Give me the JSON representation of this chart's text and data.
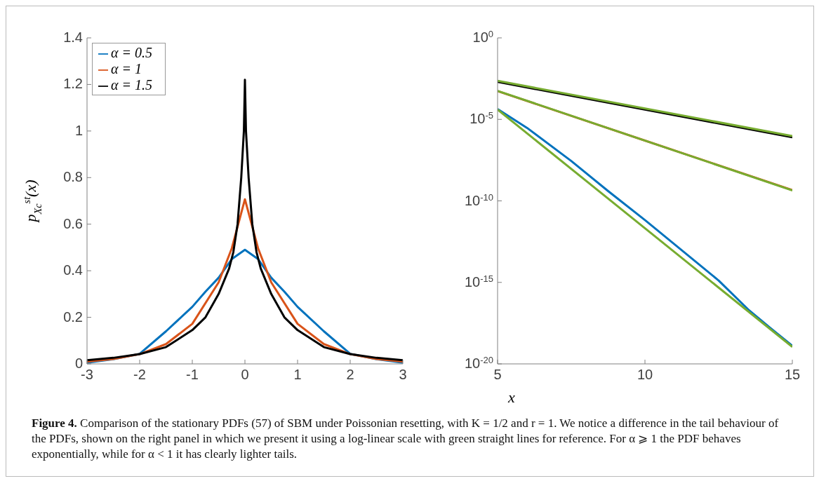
{
  "chart_data": [
    {
      "type": "line",
      "ylabel": "p$_{X}$$_{c}$$^{st}$(x)",
      "xlim": [
        -3,
        3
      ],
      "xticks": [
        -3,
        -2,
        -1,
        0,
        1,
        2,
        3
      ],
      "ylim": [
        0,
        1.4
      ],
      "yticks": [
        0,
        0.2,
        0.4,
        0.6,
        0.8,
        1,
        1.2,
        1.4
      ],
      "legend": "top left",
      "marker": "none",
      "line_style": "solid",
      "series": [
        {
          "name": "α = 0.5",
          "color": "#0072bd",
          "x": [
            -3,
            -2.5,
            -2,
            -1.5,
            -1,
            -0.75,
            -0.5,
            -0.25,
            0,
            0.25,
            0.5,
            0.75,
            1,
            1.5,
            2,
            2.5,
            3
          ],
          "values": [
            0.005,
            0.02,
            0.043,
            0.14,
            0.245,
            0.31,
            0.37,
            0.45,
            0.49,
            0.45,
            0.37,
            0.31,
            0.245,
            0.14,
            0.043,
            0.02,
            0.005
          ]
        },
        {
          "name": "α = 1",
          "color": "#d95319",
          "x": [
            -3,
            -2.5,
            -2,
            -1.5,
            -1,
            -0.5,
            -0.25,
            0,
            0.25,
            0.5,
            1,
            1.5,
            2,
            2.5,
            3
          ],
          "values": [
            0.01,
            0.021,
            0.042,
            0.085,
            0.172,
            0.35,
            0.496,
            0.707,
            0.496,
            0.35,
            0.172,
            0.085,
            0.042,
            0.021,
            0.01
          ]
        },
        {
          "name": "α = 1.5",
          "color": "#000000",
          "x": [
            -3,
            -2.5,
            -2,
            -1.5,
            -1,
            -0.75,
            -0.5,
            -0.3,
            -0.22,
            -0.14,
            -0.07,
            -0.02,
            0,
            0.02,
            0.07,
            0.14,
            0.22,
            0.3,
            0.5,
            0.75,
            1,
            1.5,
            2,
            2.5,
            3
          ],
          "values": [
            0.016,
            0.026,
            0.042,
            0.072,
            0.145,
            0.2,
            0.3,
            0.41,
            0.48,
            0.6,
            0.8,
            1.0,
            1.22,
            1.0,
            0.8,
            0.6,
            0.48,
            0.41,
            0.3,
            0.2,
            0.145,
            0.072,
            0.042,
            0.026,
            0.016
          ]
        }
      ],
      "annotations": [
        "Figure 4.",
        "Comparison of the stationary PDFs (57) of SBM under Poissonian resetting, with K = 1/2 and r = 1. We notice a difference in the tail behaviour of the PDFs, shown on the right panel in which we present it using a log-linear scale with green straight lines for reference. For α ⩾ 1 the PDF behaves exponentially, while for α < 1 it has clearly lighter tails."
      ]
    },
    {
      "type": "line",
      "xlabel": "x",
      "log": "y",
      "xlim": [
        5,
        15
      ],
      "xticks": [
        5,
        10,
        15
      ],
      "ylim": [
        1e-20,
        1
      ],
      "yticks": [
        {
          "value": 1e-20,
          "label": "10$^{-20}$"
        },
        {
          "value": 1e-15,
          "label": "10$^{-15}$"
        },
        {
          "value": 1e-10,
          "label": "10$^{-10}$"
        },
        {
          "value": 1e-05,
          "label": "10$^{-5}$"
        },
        {
          "value": 1,
          "label": "10$^{0}$"
        }
      ],
      "marker": "none",
      "line_style": "solid",
      "series": [
        {
          "color": "#0072bd",
          "x": [
            5,
            6,
            7.5,
            8.75,
            10,
            12.5,
            13.5,
            14.25,
            15
          ],
          "values": [
            4.3e-05,
            3e-06,
            2.8e-08,
            4e-10,
            6.6e-12,
            1.3e-15,
            2.2e-17,
            1.6e-18,
            1.3e-19
          ]
        },
        {
          "color": "#77ac30",
          "x": [
            5,
            15
          ],
          "values": [
            4e-05,
            1.1e-19
          ]
        },
        {
          "color": "#d95319",
          "x": [
            5,
            10,
            15
          ],
          "values": [
            0.00054,
            5e-07,
            4.6e-10
          ]
        },
        {
          "color": "#77ac30",
          "x": [
            5,
            15
          ],
          "values": [
            0.00056,
            4.4e-10
          ]
        },
        {
          "color": "#000000",
          "x": [
            5,
            7.5,
            10,
            12.5,
            15
          ],
          "values": [
            0.002,
            0.00028,
            4e-05,
            5.6e-06,
            8e-07
          ]
        },
        {
          "color": "#77ac30",
          "x": [
            5,
            15
          ],
          "values": [
            0.0023,
            9.5e-07
          ]
        }
      ]
    }
  ]
}
